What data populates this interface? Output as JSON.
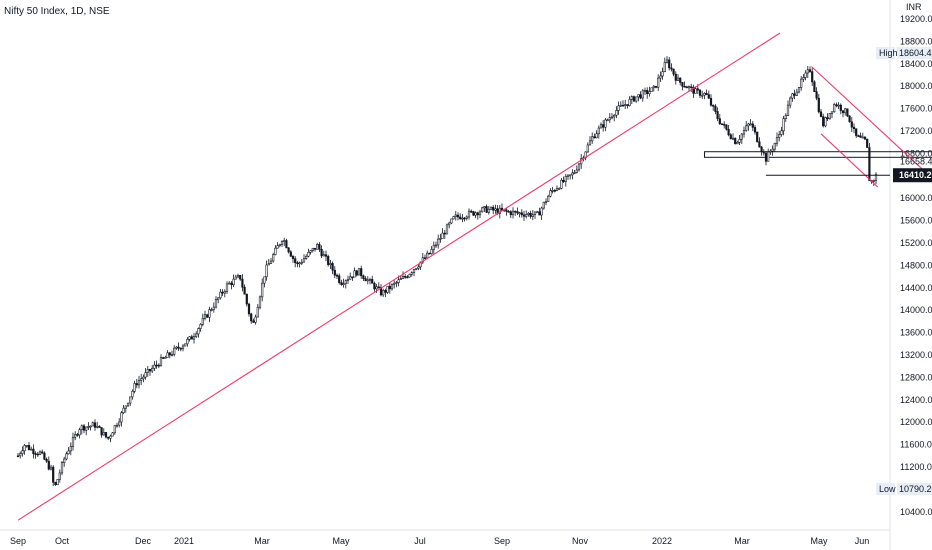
{
  "header": {
    "title": "Nifty 50 Index, 1D, NSE"
  },
  "price_axis": {
    "currency": "INR",
    "high_label": "High",
    "high_value": "18604.45",
    "low_label": "Low",
    "low_value": "10790.20",
    "last_price": "16410.20",
    "level_label": "16658.40"
  },
  "colors": {
    "up": "#131722",
    "trend_up": "#f23a68",
    "trend_down": "#f23a68",
    "last_tag": "#131722",
    "hl_tag": "#e7eef7"
  },
  "chart_data": {
    "type": "candlestick",
    "title": "Nifty 50 Index, 1D, NSE",
    "ylim": [
      10200,
      19300
    ],
    "y_ticks": [
      19200,
      18800,
      18400,
      18000,
      17600,
      17200,
      16800,
      16400,
      16000,
      15600,
      15200,
      14800,
      14400,
      14000,
      13600,
      13200,
      12800,
      12400,
      12000,
      11600,
      11200,
      10800,
      10400
    ],
    "x_ticks": [
      "Sep",
      "Oct",
      "Dec",
      "2021",
      "Mar",
      "May",
      "Jul",
      "Sep",
      "Nov",
      "2022",
      "Mar",
      "May",
      "Jun"
    ],
    "price_path": [
      [
        "2020-09-01",
        11400
      ],
      [
        "2020-09-05",
        11600
      ],
      [
        "2020-09-10",
        11500
      ],
      [
        "2020-09-15",
        11450
      ],
      [
        "2020-09-22",
        11150
      ],
      [
        "2020-09-24",
        10800
      ],
      [
        "2020-10-01",
        11400
      ],
      [
        "2020-10-10",
        11900
      ],
      [
        "2020-10-20",
        11950
      ],
      [
        "2020-10-28",
        11700
      ],
      [
        "2020-11-05",
        12100
      ],
      [
        "2020-11-15",
        12700
      ],
      [
        "2020-12-01",
        13100
      ],
      [
        "2020-12-20",
        13500
      ],
      [
        "2021-01-01",
        14000
      ],
      [
        "2021-01-12",
        14450
      ],
      [
        "2021-01-20",
        14600
      ],
      [
        "2021-01-28",
        13700
      ],
      [
        "2021-02-05",
        14700
      ],
      [
        "2021-02-16",
        15300
      ],
      [
        "2021-02-25",
        14800
      ],
      [
        "2021-03-10",
        15150
      ],
      [
        "2021-03-25",
        14500
      ],
      [
        "2021-04-05",
        14700
      ],
      [
        "2021-04-20",
        14300
      ],
      [
        "2021-05-05",
        14600
      ],
      [
        "2021-05-20",
        15000
      ],
      [
        "2021-06-05",
        15650
      ],
      [
        "2021-06-25",
        15800
      ],
      [
        "2021-07-10",
        15750
      ],
      [
        "2021-07-28",
        15700
      ],
      [
        "2021-08-05",
        16100
      ],
      [
        "2021-08-20",
        16450
      ],
      [
        "2021-09-01",
        17100
      ],
      [
        "2021-09-15",
        17550
      ],
      [
        "2021-09-28",
        17800
      ],
      [
        "2021-10-10",
        17950
      ],
      [
        "2021-10-18",
        18450
      ],
      [
        "2021-10-25",
        18100
      ],
      [
        "2021-11-05",
        17900
      ],
      [
        "2021-11-12",
        17850
      ],
      [
        "2021-11-20",
        17400
      ],
      [
        "2021-12-01",
        17000
      ],
      [
        "2021-12-10",
        17350
      ],
      [
        "2021-12-20",
        16700
      ],
      [
        "2021-12-28",
        17100
      ],
      [
        "2022-01-05",
        17800
      ],
      [
        "2022-01-17",
        18300
      ],
      [
        "2022-01-25",
        17300
      ],
      [
        "2022-02-02",
        17700
      ],
      [
        "2022-02-10",
        17500
      ],
      [
        "2022-02-15",
        17100
      ],
      [
        "2022-02-22",
        17000
      ],
      [
        "2022-02-24",
        16250
      ],
      [
        "2022-02-28",
        16400
      ]
    ],
    "annotations": [
      {
        "type": "trendline",
        "from": [
          "2020-09-01",
          10250
        ],
        "to": [
          "2021-12-29",
          18950
        ]
      },
      {
        "type": "trendline",
        "from": [
          "2022-01-18",
          18350
        ],
        "to": [
          "2022-05-19",
          15200
        ]
      },
      {
        "type": "trendline",
        "from": [
          "2022-01-24",
          17150
        ],
        "to": [
          "2022-03-01",
          16200
        ]
      },
      {
        "type": "zone",
        "from": "2021-11-11",
        "to": "2022-04-07",
        "y_low": 16730,
        "y_high": 16830
      },
      {
        "type": "hline",
        "from": "2021-12-20",
        "to": "2022-06-21",
        "y": 16410.2
      }
    ],
    "high": 18604.45,
    "low": 10790.2,
    "last": 16410.2
  }
}
